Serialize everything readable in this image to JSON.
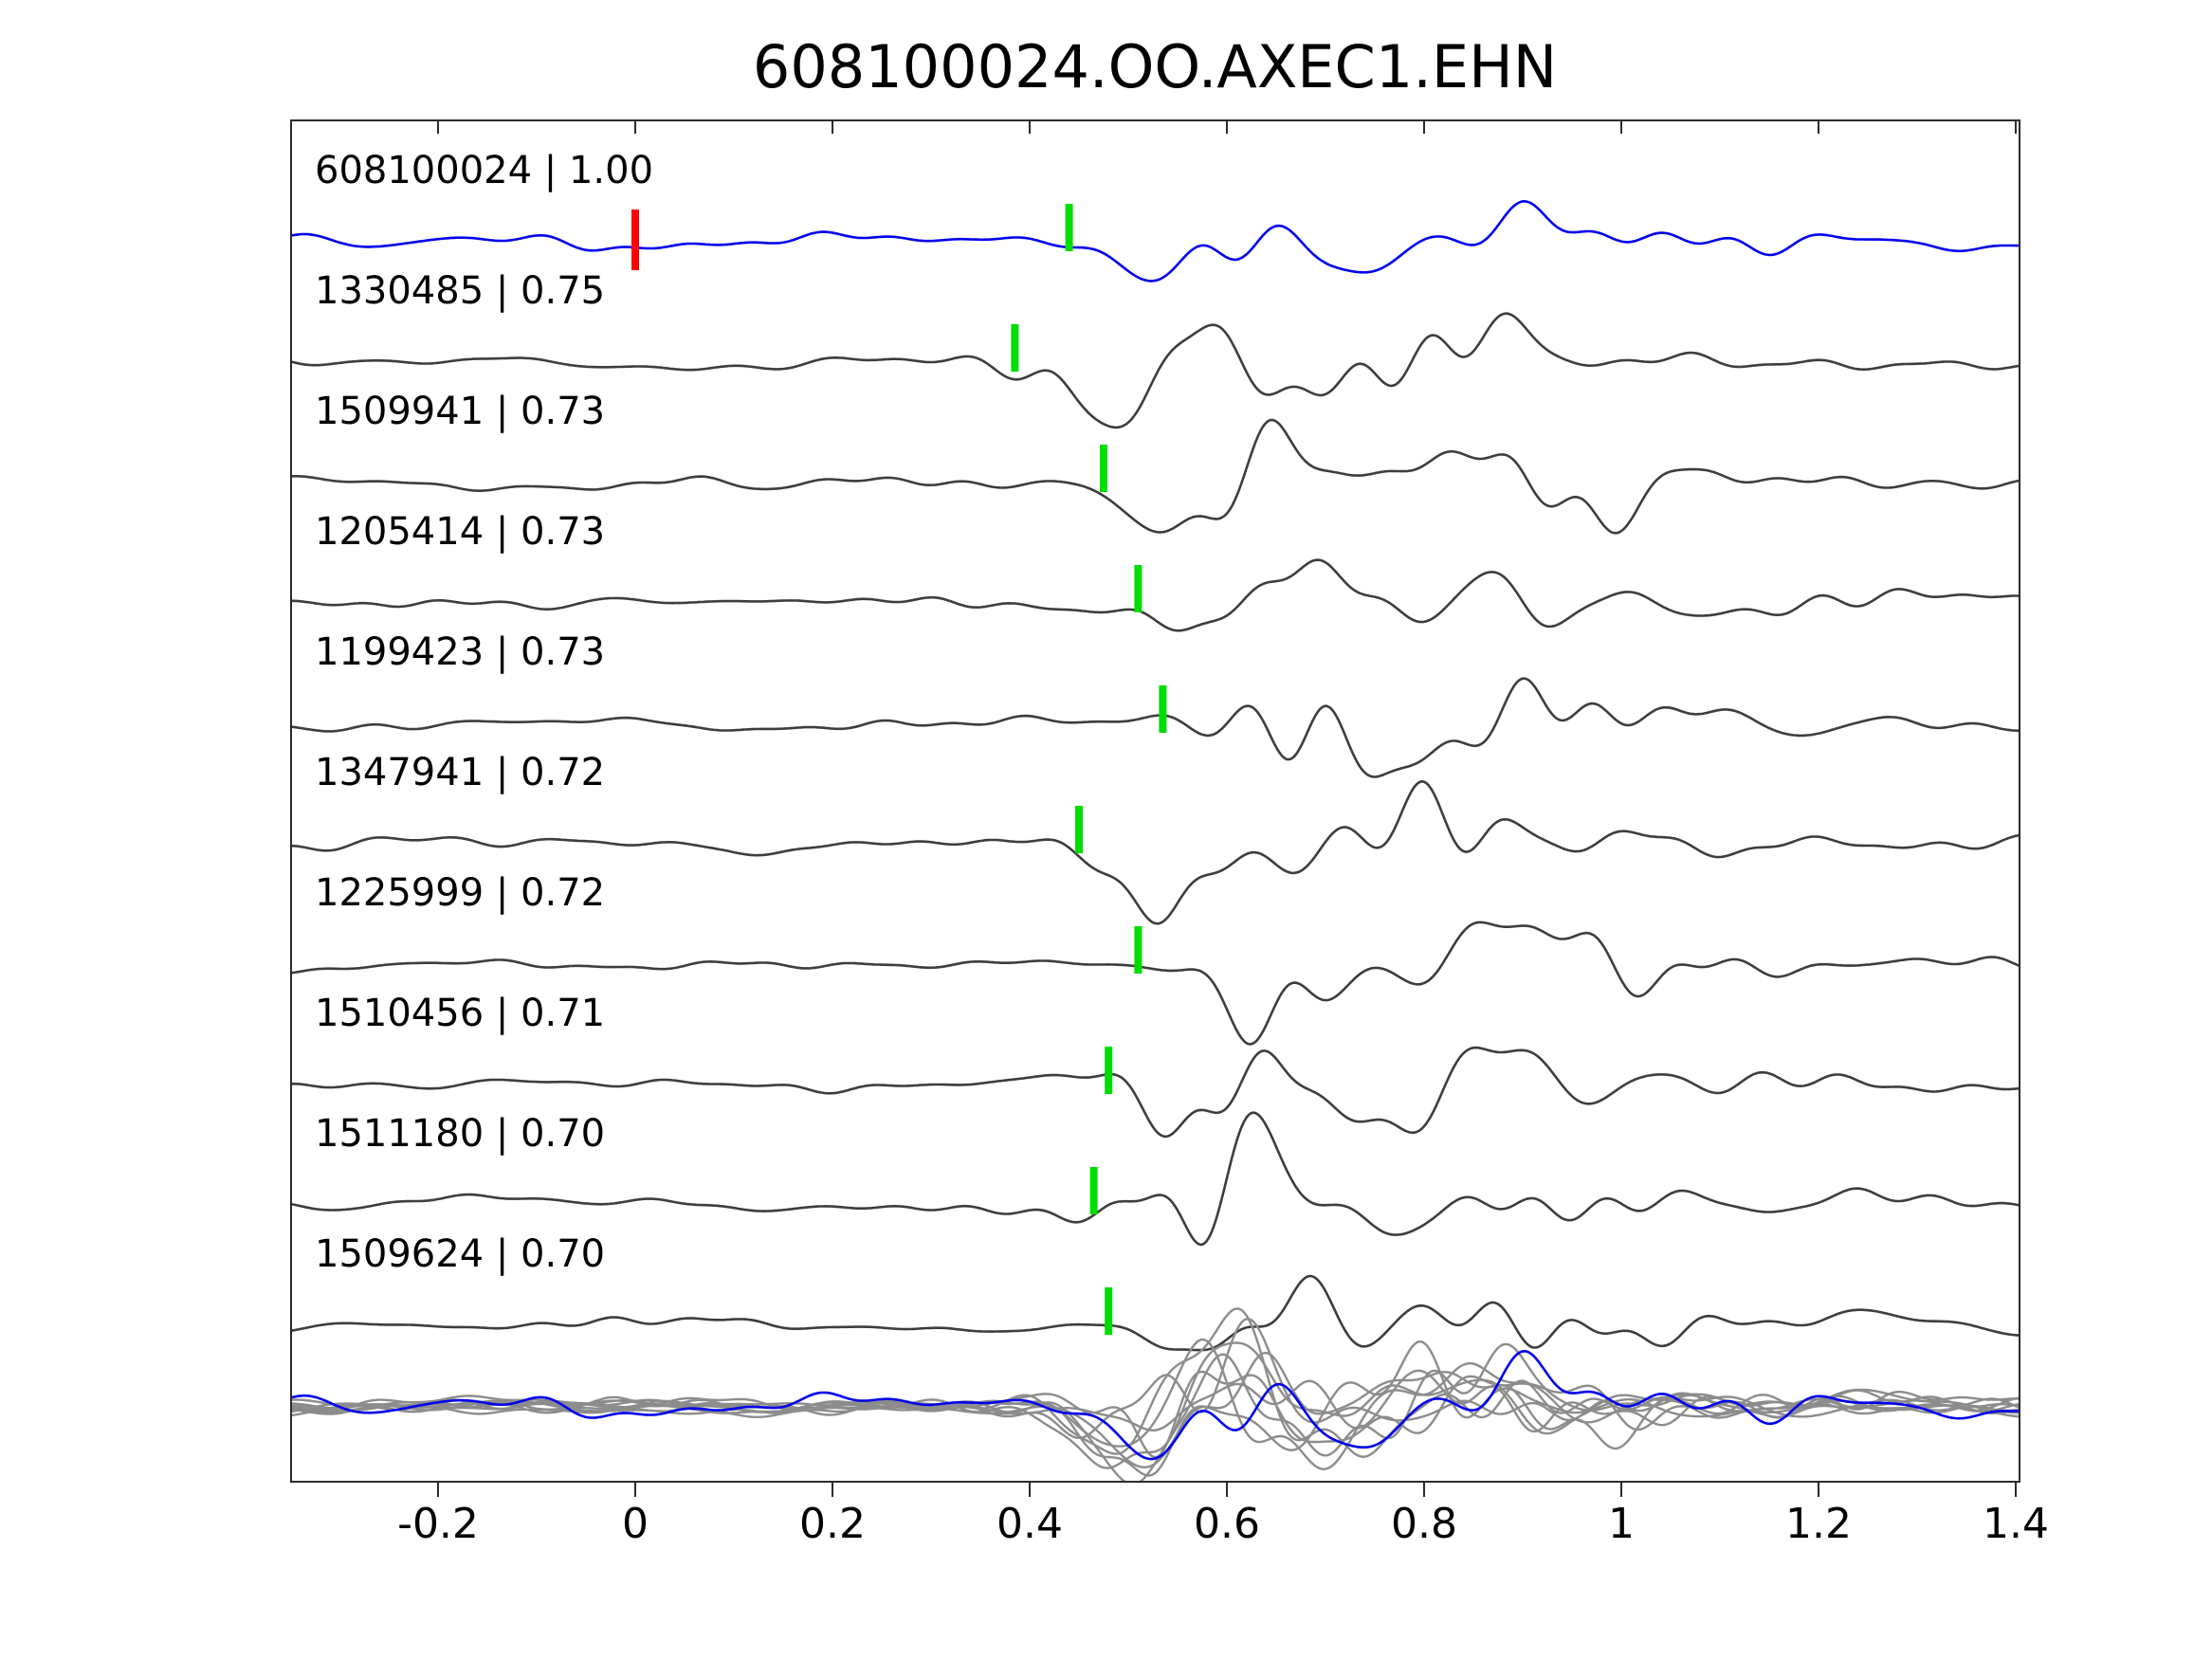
{
  "chart_data": {
    "type": "line",
    "title": "608100024.OO.AXEC1.EHN",
    "subtitle": "",
    "description": "Template matching waveform comparison: blue template trace on top, nine matched detection traces below (each labeled 'id | correlation'), and an overlay of all aligned traces at the bottom. Green bars mark pick times; red bar marks template zero time.",
    "xlim": [
      -0.349,
      1.404
    ],
    "x_ticks": [
      -0.2,
      0,
      0.2,
      0.4,
      0.6,
      0.8,
      1,
      1.2,
      1.4
    ],
    "x_tick_labels": [
      "-0.2",
      "0",
      "0.2",
      "0.4",
      "0.6",
      "0.8",
      "1",
      "1.2",
      "1.4"
    ],
    "grid": false,
    "legend": "none",
    "template_zero_time": 0.0,
    "rows": [
      {
        "id": "608100024",
        "cc": "1.00",
        "label": "608100024 | 1.00",
        "pick": 0.44,
        "is_template": true
      },
      {
        "id": "1330485",
        "cc": "0.75",
        "label": "1330485 | 0.75",
        "pick": 0.385,
        "is_template": false
      },
      {
        "id": "1509941",
        "cc": "0.73",
        "label": "1509941 | 0.73",
        "pick": 0.475,
        "is_template": false
      },
      {
        "id": "1205414",
        "cc": "0.73",
        "label": "1205414 | 0.73",
        "pick": 0.51,
        "is_template": false
      },
      {
        "id": "1199423",
        "cc": "0.73",
        "label": "1199423 | 0.73",
        "pick": 0.535,
        "is_template": false
      },
      {
        "id": "1347941",
        "cc": "0.72",
        "label": "1347941 | 0.72",
        "pick": 0.45,
        "is_template": false
      },
      {
        "id": "1225999",
        "cc": "0.72",
        "label": "1225999 | 0.72",
        "pick": 0.51,
        "is_template": false
      },
      {
        "id": "1510456",
        "cc": "0.71",
        "label": "1510456 | 0.71",
        "pick": 0.48,
        "is_template": false
      },
      {
        "id": "1511180",
        "cc": "0.70",
        "label": "1511180 | 0.70",
        "pick": 0.465,
        "is_template": false
      },
      {
        "id": "1509624",
        "cc": "0.70",
        "label": "1509624 | 0.70",
        "pick": 0.48,
        "is_template": false
      }
    ],
    "overlay": {
      "description": "all traces superimposed, aligned on pick",
      "count": 10,
      "alignment_time": 0.44
    }
  },
  "colors": {
    "template_trace": "#0000ee",
    "detection_trace": "#3d3d3d",
    "overlay_trace": "#8c8c8c",
    "overlay_template": "#0000ee",
    "pick_marker": "#00dd00",
    "template_time_marker": "#ff0000",
    "axis": "#2b2b2b",
    "text": "#000000"
  }
}
